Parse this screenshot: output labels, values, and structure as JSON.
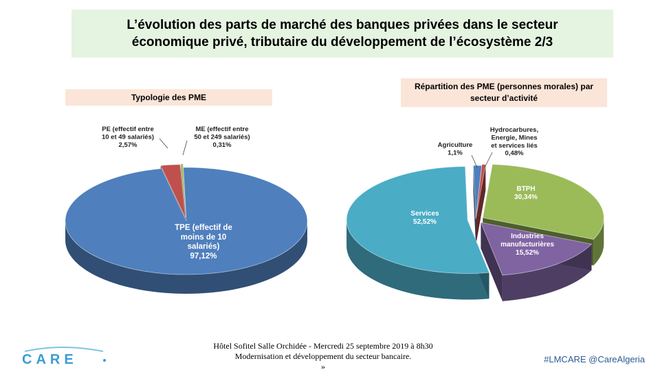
{
  "slide": {
    "title_line1": "L’évolution des parts de marché  des banques  privées dans le secteur",
    "title_line2": "économique privé, tributaire du développement de l’écosystème 2/3",
    "footer_line1": "Hôtel  Sofitel Salle Orchidée - Mercredi 25 septembre 2019 à 8h30",
    "footer_line2": "Modernisation et développement du secteur bancaire.",
    "footer_line3": "»",
    "hashtag": "#LMCARE @CareAlgeria",
    "logo_text": "CARE"
  },
  "chart_data": [
    {
      "type": "pie",
      "title": "Typologie des PME",
      "slices": [
        {
          "label_lines": [
            "TPE (effectif de",
            "moins de 10",
            "salariés)"
          ],
          "value": 97.12,
          "value_label": "97,12%",
          "color": "#4f7fbd"
        },
        {
          "label_lines": [
            "PE (effectif entre",
            "10 et 49 salariés)"
          ],
          "value": 2.57,
          "value_label": "2,57%",
          "color": "#c0504d"
        },
        {
          "label_lines": [
            "ME (effectif entre",
            "50 et 249 salariés)"
          ],
          "value": 0.31,
          "value_label": "0,31%",
          "color": "#9bbb59"
        }
      ]
    },
    {
      "type": "pie",
      "title_line1": "Répartition des PME (personnes morales) par",
      "title_line2": "secteur d’activité",
      "slices": [
        {
          "label_lines": [
            "Agriculture"
          ],
          "value": 1.1,
          "value_label": "1,1%",
          "color": "#4f7fbd"
        },
        {
          "label_lines": [
            "Hydrocarbures,",
            "Energie, Mines",
            "et services liés"
          ],
          "value": 0.48,
          "value_label": "0,48%",
          "color": "#c0504d"
        },
        {
          "label_lines": [
            "BTPH"
          ],
          "value": 30.34,
          "value_label": "30,34%",
          "color": "#9bbb59"
        },
        {
          "label_lines": [
            "Industries",
            "manufacturières"
          ],
          "value": 15.52,
          "value_label": "15,52%",
          "color": "#8064a2"
        },
        {
          "label_lines": [
            "Services"
          ],
          "value": 52.52,
          "value_label": "52,52%",
          "color": "#4bacc6"
        }
      ]
    }
  ]
}
